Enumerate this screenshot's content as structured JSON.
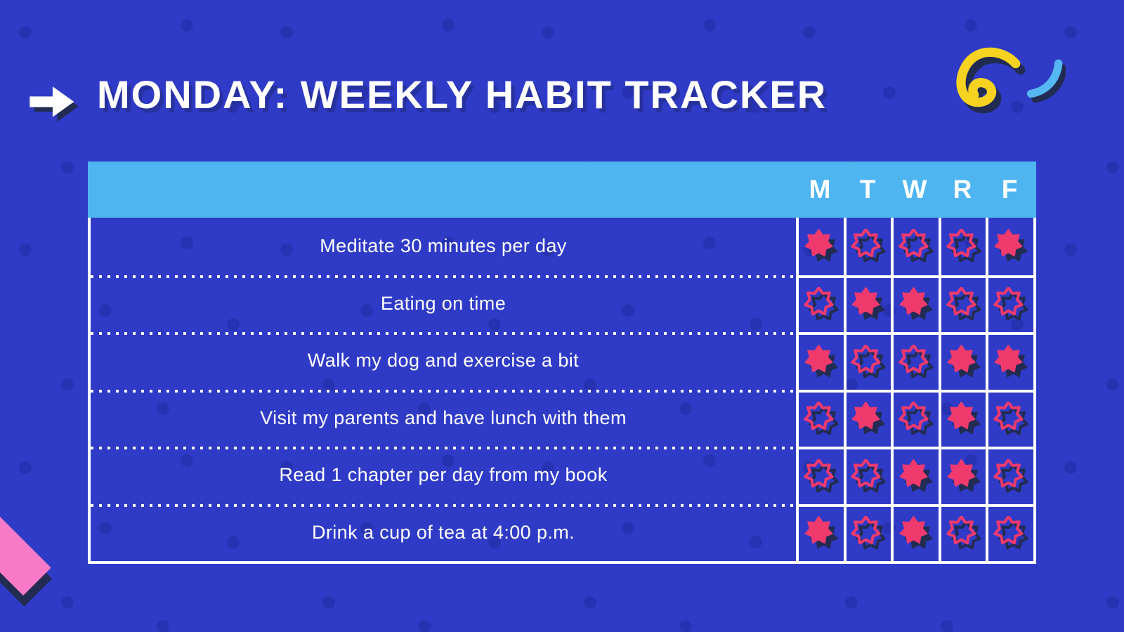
{
  "page": {
    "title": "MONDAY: WEEKLY HABIT TRACKER"
  },
  "colors": {
    "background": "#2F3BC6",
    "background_dot": "#2732B2",
    "header_blue": "#4FB5F1",
    "star_pink": "#F03A6E",
    "shadow_navy": "#222C52",
    "accent_yellow": "#F6D321",
    "accent_light_blue": "#56B8F2",
    "accent_pink": "#F97BC8",
    "text_white": "#FFFFFF"
  },
  "icons": {
    "title_arrow": "arrow-right-icon",
    "top_right_scribble": "yellow-squiggle-icon",
    "top_right_curve": "blue-arc-icon",
    "bottom_left_shape": "pink-parallelogram-icon",
    "day_done": "filled-burst-star-icon",
    "day_not_done": "outline-burst-star-icon"
  },
  "table": {
    "day_headers": [
      "M",
      "T",
      "W",
      "R",
      "F"
    ],
    "rows": [
      {
        "label": "Meditate 30 minutes per day",
        "days": [
          true,
          false,
          false,
          false,
          true
        ]
      },
      {
        "label": "Eating on time",
        "days": [
          false,
          true,
          true,
          false,
          false
        ]
      },
      {
        "label": "Walk my dog and exercise a bit",
        "days": [
          true,
          false,
          false,
          true,
          true
        ]
      },
      {
        "label": "Visit my parents and have lunch with them",
        "days": [
          false,
          true,
          false,
          true,
          false
        ]
      },
      {
        "label": "Read 1 chapter per day from my book",
        "days": [
          false,
          false,
          true,
          true,
          false
        ]
      },
      {
        "label": "Drink a cup of tea at 4:00 p.m.",
        "days": [
          true,
          false,
          true,
          false,
          false
        ]
      }
    ]
  }
}
